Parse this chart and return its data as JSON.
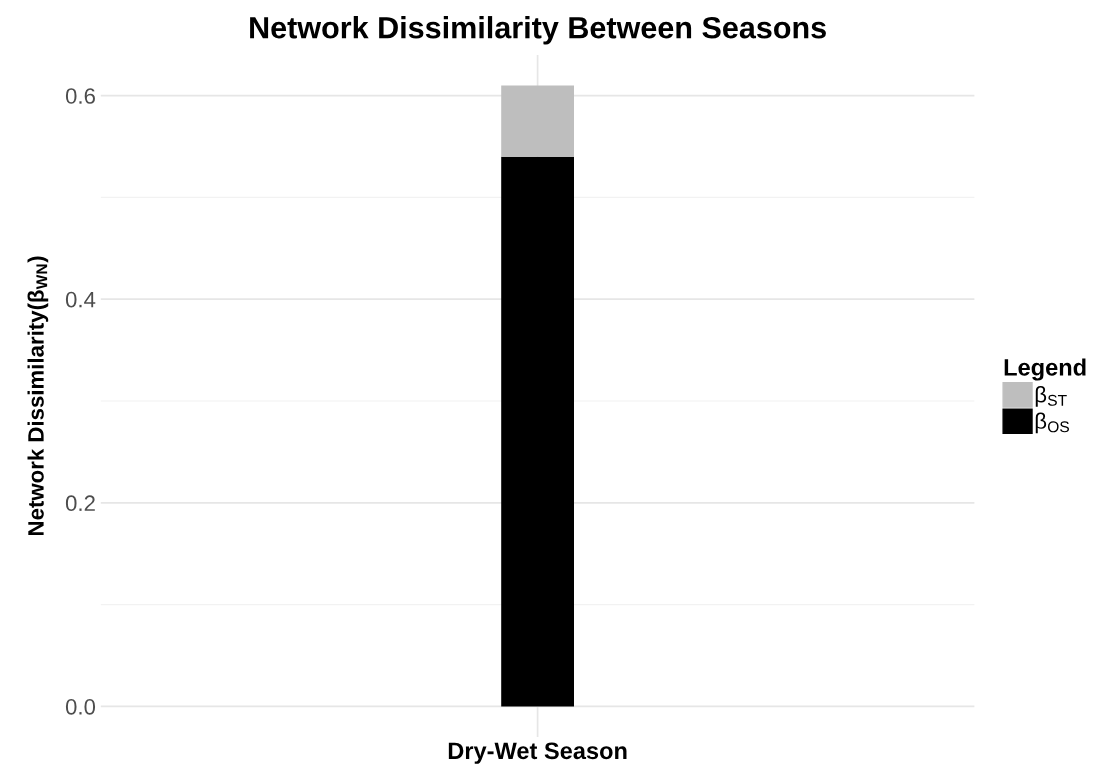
{
  "chart_data": {
    "type": "bar",
    "title": "Network Dissimilarity Between Seasons",
    "ylabel": "Network Dissimilarity(β$_{WN}$)",
    "legend_title": "Legend",
    "categories": [
      "Dry-Wet Season"
    ],
    "stacked": true,
    "series": [
      {
        "name": "β$_{OS}$",
        "color": "#000000",
        "values": [
          0.54
        ]
      },
      {
        "name": "β$_{ST}$",
        "color": "#bebebe",
        "values": [
          0.07
        ]
      }
    ],
    "ylim": [
      -0.03,
      0.64
    ],
    "yticks": [
      {
        "value": 0,
        "label": "0.0"
      },
      {
        "value": 0.2,
        "label": "0.2"
      },
      {
        "value": 0.4,
        "label": "0.4"
      },
      {
        "value": 0.6,
        "label": "0.6"
      }
    ],
    "grid": true,
    "legend": "right"
  }
}
